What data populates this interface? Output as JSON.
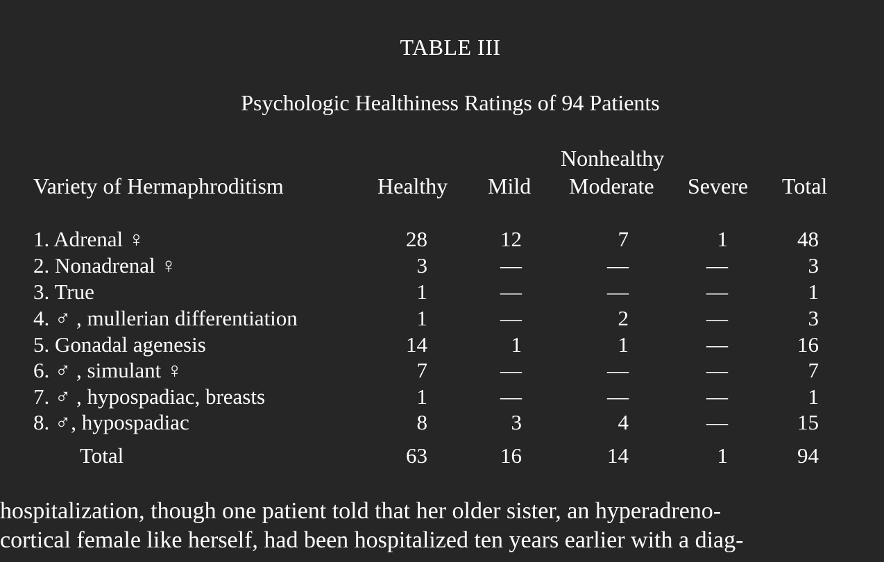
{
  "title": "TABLE III",
  "subtitle": "Psychologic Healthiness Ratings of 94 Patients",
  "header": {
    "group": "Nonhealthy",
    "variety": "Variety of Hermaphroditism",
    "healthy": "Healthy",
    "mild": "Mild",
    "moderate": "Moderate",
    "severe": "Severe",
    "total": "Total"
  },
  "rows": [
    {
      "label": "1.  Adrenal ♀",
      "healthy": "28",
      "mild": "12",
      "moderate": "7",
      "severe": "1",
      "total": "48"
    },
    {
      "label": "2.  Nonadrenal ♀",
      "healthy": "3",
      "mild": "—",
      "moderate": "—",
      "severe": "—",
      "total": "3"
    },
    {
      "label": "3.  True",
      "healthy": "1",
      "mild": "—",
      "moderate": "—",
      "severe": "—",
      "total": "1"
    },
    {
      "label": "4. ♂ , mullerian differentiation",
      "healthy": "1",
      "mild": "—",
      "moderate": "2",
      "severe": "—",
      "total": "3"
    },
    {
      "label": "5.  Gonadal agenesis",
      "healthy": "14",
      "mild": "1",
      "moderate": "1",
      "severe": "—",
      "total": "16"
    },
    {
      "label": "6. ♂ , simulant ♀",
      "healthy": "7",
      "mild": "—",
      "moderate": "—",
      "severe": "—",
      "total": "7"
    },
    {
      "label": "7. ♂ , hypospadiac, breasts",
      "healthy": "1",
      "mild": "—",
      "moderate": "—",
      "severe": "—",
      "total": "1"
    },
    {
      "label": "8. ♂, hypospadiac",
      "healthy": "8",
      "mild": "3",
      "moderate": "4",
      "severe": "—",
      "total": "15"
    }
  ],
  "totals": {
    "label": "Total",
    "healthy": "63",
    "mild": "16",
    "moderate": "14",
    "severe": "1",
    "total": "94"
  },
  "body_text": [
    "hospitalization, though one patient told that her older sister, an hyperadreno-",
    "cortical female like herself, had been hospitalized ten years earlier with a diag-"
  ]
}
